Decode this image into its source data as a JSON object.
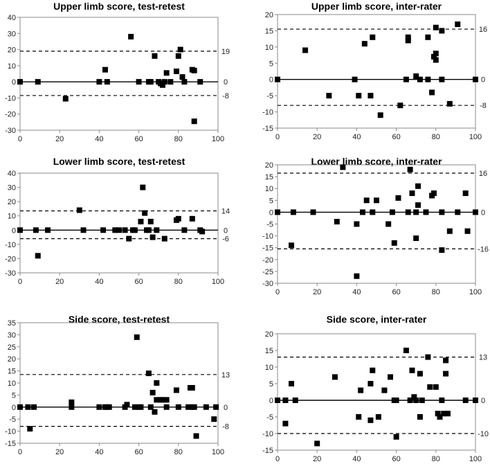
{
  "chart_data": [
    {
      "type": "scatter",
      "title": "Upper limb score, test-retest",
      "xlim": [
        0,
        100
      ],
      "ylim": [
        -30,
        40
      ],
      "xticks": [
        "0",
        "20",
        "40",
        "60",
        "80",
        "100"
      ],
      "yticks": [
        "-30",
        "-20",
        "-10",
        "0",
        "10",
        "20",
        "30",
        "40"
      ],
      "limits": [
        {
          "value": 19,
          "label": "19"
        },
        {
          "value": 0,
          "label": "0"
        },
        {
          "value": -8.5,
          "label": "-8"
        }
      ],
      "points": [
        [
          0,
          0
        ],
        [
          9,
          0
        ],
        [
          23,
          -10.5
        ],
        [
          40,
          0
        ],
        [
          43,
          7.5
        ],
        [
          44,
          0
        ],
        [
          56,
          28
        ],
        [
          60,
          0
        ],
        [
          65,
          0
        ],
        [
          66,
          0
        ],
        [
          68,
          16
        ],
        [
          70,
          0
        ],
        [
          71,
          -1
        ],
        [
          72,
          -2
        ],
        [
          73,
          0
        ],
        [
          74,
          5.5
        ],
        [
          76,
          0
        ],
        [
          79,
          6.5
        ],
        [
          80,
          16
        ],
        [
          81,
          20
        ],
        [
          82,
          3
        ],
        [
          83,
          0
        ],
        [
          87,
          7.5
        ],
        [
          88,
          7
        ],
        [
          88,
          -24.5
        ],
        [
          91,
          0
        ]
      ]
    },
    {
      "type": "scatter",
      "title": "Upper limb score, inter-rater",
      "xlim": [
        0,
        100
      ],
      "ylim": [
        -15,
        20
      ],
      "xticks": [
        "0",
        "20",
        "40",
        "60",
        "80",
        "100"
      ],
      "yticks": [
        "-15",
        "-10",
        "-5",
        "0",
        "5",
        "10",
        "15",
        "20"
      ],
      "limits": [
        {
          "value": 15.5,
          "label": "16"
        },
        {
          "value": 0,
          "label": "0"
        },
        {
          "value": -8,
          "label": "-8"
        }
      ],
      "points": [
        [
          0,
          0
        ],
        [
          14,
          9
        ],
        [
          26,
          -5
        ],
        [
          39,
          0
        ],
        [
          41,
          -5
        ],
        [
          44,
          11
        ],
        [
          47,
          -5
        ],
        [
          48,
          13
        ],
        [
          52,
          -11
        ],
        [
          62,
          -8
        ],
        [
          65,
          0
        ],
        [
          66,
          13
        ],
        [
          66,
          12
        ],
        [
          70,
          1
        ],
        [
          72,
          0
        ],
        [
          76,
          0
        ],
        [
          76,
          13
        ],
        [
          78,
          -4
        ],
        [
          79,
          7
        ],
        [
          80,
          6
        ],
        [
          80,
          8
        ],
        [
          80,
          16
        ],
        [
          83,
          0
        ],
        [
          83,
          15
        ],
        [
          87,
          -7.5
        ],
        [
          91,
          17
        ],
        [
          100,
          0
        ]
      ]
    },
    {
      "type": "scatter",
      "title": "Lower limb score, test-retest",
      "xlim": [
        0,
        100
      ],
      "ylim": [
        -30,
        40
      ],
      "xticks": [
        "0",
        "20",
        "40",
        "60",
        "80",
        "100"
      ],
      "yticks": [
        "-30",
        "-20",
        "-10",
        "0",
        "10",
        "20",
        "30",
        "40"
      ],
      "limits": [
        {
          "value": 13.5,
          "label": "14"
        },
        {
          "value": 0,
          "label": "0"
        },
        {
          "value": -6,
          "label": "-6"
        }
      ],
      "points": [
        [
          0,
          0
        ],
        [
          8,
          0
        ],
        [
          9,
          -18
        ],
        [
          14,
          0
        ],
        [
          30,
          14
        ],
        [
          32,
          0
        ],
        [
          42,
          0
        ],
        [
          48,
          0
        ],
        [
          50,
          0
        ],
        [
          53,
          0
        ],
        [
          55,
          -6
        ],
        [
          57,
          0
        ],
        [
          58,
          0
        ],
        [
          61,
          6
        ],
        [
          62,
          30
        ],
        [
          63,
          12
        ],
        [
          64,
          0
        ],
        [
          65,
          0
        ],
        [
          66,
          6
        ],
        [
          67,
          -5
        ],
        [
          69,
          0
        ],
        [
          73,
          -6
        ],
        [
          79,
          7
        ],
        [
          80,
          8
        ],
        [
          83,
          0
        ],
        [
          87,
          8
        ],
        [
          91,
          0
        ],
        [
          92,
          -1
        ]
      ]
    },
    {
      "type": "scatter",
      "title": "Lower limb score, inter-rater",
      "xlim": [
        0,
        100
      ],
      "ylim": [
        -30,
        20
      ],
      "xticks": [
        "0",
        "20",
        "40",
        "60",
        "80",
        "100"
      ],
      "yticks": [
        "-30",
        "-25",
        "-20",
        "-15",
        "-10",
        "-5",
        "0",
        "5",
        "10",
        "15",
        "20"
      ],
      "limits": [
        {
          "value": 16.5,
          "label": "16"
        },
        {
          "value": 0,
          "label": "0"
        },
        {
          "value": -15.5,
          "label": "-16"
        }
      ],
      "points": [
        [
          0,
          0
        ],
        [
          7,
          -14
        ],
        [
          8,
          0
        ],
        [
          18,
          0
        ],
        [
          30,
          -4
        ],
        [
          33,
          19
        ],
        [
          40,
          -5
        ],
        [
          40,
          -27
        ],
        [
          43,
          0
        ],
        [
          45,
          5
        ],
        [
          48,
          0
        ],
        [
          50,
          5
        ],
        [
          56,
          -5
        ],
        [
          58,
          0
        ],
        [
          59,
          -13
        ],
        [
          61,
          6
        ],
        [
          66,
          0
        ],
        [
          67,
          18
        ],
        [
          68,
          8
        ],
        [
          70,
          0
        ],
        [
          70,
          -11
        ],
        [
          71,
          11
        ],
        [
          71,
          3
        ],
        [
          75,
          0
        ],
        [
          78,
          7
        ],
        [
          79,
          8
        ],
        [
          83,
          -16
        ],
        [
          83,
          0
        ],
        [
          87,
          -8
        ],
        [
          91,
          0
        ],
        [
          95,
          8
        ],
        [
          96,
          -8
        ],
        [
          100,
          0
        ]
      ]
    },
    {
      "type": "scatter",
      "title": "Side score, test-retest",
      "xlim": [
        0,
        100
      ],
      "ylim": [
        -15,
        35
      ],
      "xticks": [
        "0",
        "20",
        "40",
        "60",
        "80",
        "100"
      ],
      "yticks": [
        "-15",
        "-10",
        "-5",
        "0",
        "5",
        "10",
        "15",
        "20",
        "25",
        "30",
        "35"
      ],
      "limits": [
        {
          "value": 13.5,
          "label": "13"
        },
        {
          "value": 0,
          "label": "0"
        },
        {
          "value": -8,
          "label": "-8"
        }
      ],
      "points": [
        [
          0,
          0
        ],
        [
          4,
          0
        ],
        [
          5,
          -9
        ],
        [
          7,
          0
        ],
        [
          26,
          2
        ],
        [
          26,
          0
        ],
        [
          40,
          0
        ],
        [
          43,
          0
        ],
        [
          44,
          0
        ],
        [
          45,
          0
        ],
        [
          53,
          0
        ],
        [
          54,
          1
        ],
        [
          58,
          0
        ],
        [
          59,
          29
        ],
        [
          60,
          0
        ],
        [
          61,
          0
        ],
        [
          65,
          14
        ],
        [
          66,
          0
        ],
        [
          67,
          6
        ],
        [
          68,
          -2
        ],
        [
          69,
          10
        ],
        [
          69,
          3
        ],
        [
          71,
          3
        ],
        [
          72,
          3
        ],
        [
          74,
          0
        ],
        [
          74,
          3
        ],
        [
          79,
          7
        ],
        [
          80,
          0
        ],
        [
          85,
          0
        ],
        [
          86,
          8
        ],
        [
          87,
          8
        ],
        [
          87,
          0
        ],
        [
          88,
          0
        ],
        [
          89,
          -12
        ],
        [
          94,
          0
        ],
        [
          98,
          -5
        ],
        [
          99,
          0
        ]
      ]
    },
    {
      "type": "scatter",
      "title": "Side score, inter-rater",
      "xlim": [
        0,
        100
      ],
      "ylim": [
        -15,
        20
      ],
      "xticks": [
        "0",
        "20",
        "40",
        "60",
        "80",
        "100"
      ],
      "yticks": [
        "-15",
        "-10",
        "-5",
        "0",
        "5",
        "10",
        "15",
        "20"
      ],
      "limits": [
        {
          "value": 13,
          "label": "13"
        },
        {
          "value": 0,
          "label": "0"
        },
        {
          "value": -10,
          "label": "-10"
        }
      ],
      "points": [
        [
          0,
          0
        ],
        [
          4,
          0
        ],
        [
          4,
          -7
        ],
        [
          7,
          5
        ],
        [
          9,
          0
        ],
        [
          20,
          -13
        ],
        [
          29,
          7
        ],
        [
          41,
          -5
        ],
        [
          42,
          3
        ],
        [
          47,
          -6
        ],
        [
          47,
          5
        ],
        [
          48,
          9
        ],
        [
          51,
          -5
        ],
        [
          54,
          3
        ],
        [
          57,
          7
        ],
        [
          59,
          0
        ],
        [
          60,
          0
        ],
        [
          60,
          -11
        ],
        [
          65,
          15
        ],
        [
          67,
          0
        ],
        [
          68,
          9
        ],
        [
          69,
          1
        ],
        [
          70,
          0
        ],
        [
          72,
          -5
        ],
        [
          72,
          8
        ],
        [
          73,
          0
        ],
        [
          76,
          13
        ],
        [
          77,
          4
        ],
        [
          80,
          4
        ],
        [
          81,
          -4
        ],
        [
          82,
          -5
        ],
        [
          83,
          0
        ],
        [
          84,
          -4
        ],
        [
          85,
          12
        ],
        [
          85,
          8
        ],
        [
          86,
          -4
        ],
        [
          95,
          0
        ],
        [
          100,
          0
        ]
      ]
    }
  ]
}
